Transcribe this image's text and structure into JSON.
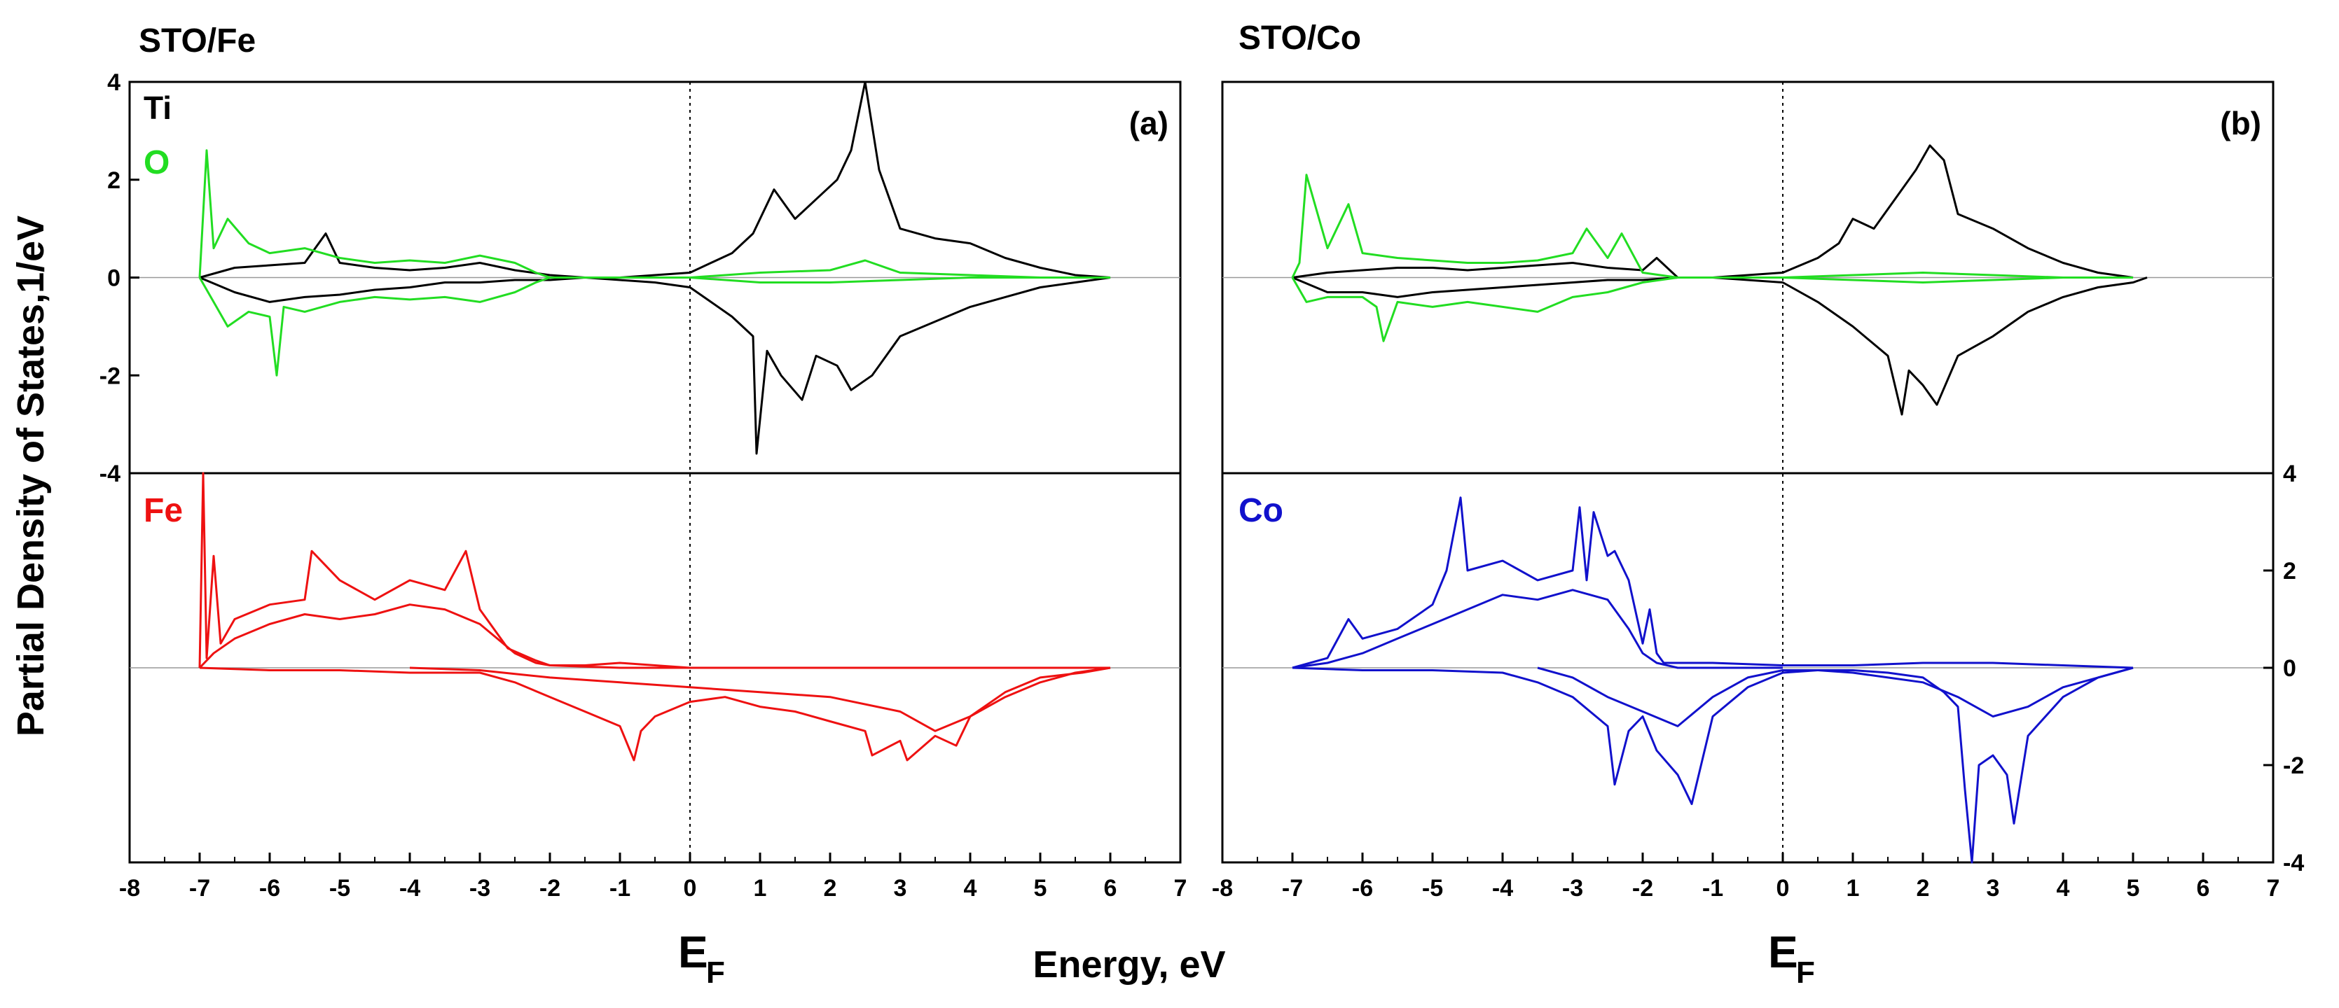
{
  "figure": {
    "ylabel": "Partial Density of States,1/eV",
    "xlabel": "Energy, eV",
    "fermi_label": "E",
    "fermi_sub": "F"
  },
  "colors": {
    "ti": "#000000",
    "o": "#22dd22",
    "fe": "#ee1111",
    "co": "#1111cc",
    "zero": "#999999"
  },
  "chart_data": [
    {
      "type": "line",
      "panel": "a",
      "row": "top",
      "title": "STO/Fe",
      "panel_label": "(a)",
      "xlim": [
        -8,
        7
      ],
      "ylim": [
        -4,
        4
      ],
      "xticks": [
        -8,
        -7,
        -6,
        -5,
        -4,
        -3,
        -2,
        -1,
        0,
        1,
        2,
        3,
        4,
        5,
        6,
        7
      ],
      "yticks": [
        -4,
        -2,
        0,
        2,
        4
      ],
      "legend": [
        "Ti",
        "O"
      ],
      "series": [
        {
          "name": "Ti spin-up",
          "color": "ti",
          "x": [
            -7.0,
            -6.5,
            -6.0,
            -5.5,
            -5.2,
            -5.0,
            -4.5,
            -4.0,
            -3.5,
            -3.0,
            -2.5,
            -2.0,
            -1.5,
            -1.0,
            -0.5,
            0,
            0.3,
            0.6,
            0.9,
            1.2,
            1.5,
            1.8,
            2.1,
            2.3,
            2.5,
            2.7,
            3.0,
            3.5,
            4.0,
            4.5,
            5.0,
            5.5,
            6.0
          ],
          "y": [
            0.0,
            0.2,
            0.25,
            0.3,
            0.9,
            0.3,
            0.2,
            0.15,
            0.2,
            0.3,
            0.15,
            0.05,
            0.0,
            0.0,
            0.05,
            0.1,
            0.3,
            0.5,
            0.9,
            1.8,
            1.2,
            1.6,
            2.0,
            2.6,
            4.0,
            2.2,
            1.0,
            0.8,
            0.7,
            0.4,
            0.2,
            0.05,
            0.0
          ]
        },
        {
          "name": "Ti spin-down",
          "color": "ti",
          "x": [
            -7.0,
            -6.5,
            -6.0,
            -5.5,
            -5.0,
            -4.5,
            -4.0,
            -3.5,
            -3.0,
            -2.5,
            -2.0,
            -1.5,
            -1.0,
            -0.5,
            0,
            0.3,
            0.6,
            0.9,
            0.95,
            1.1,
            1.3,
            1.6,
            1.8,
            2.1,
            2.3,
            2.6,
            3.0,
            3.5,
            4.0,
            4.5,
            5.0,
            5.5,
            6.0
          ],
          "y": [
            0.0,
            -0.3,
            -0.5,
            -0.4,
            -0.35,
            -0.25,
            -0.2,
            -0.1,
            -0.1,
            -0.05,
            -0.05,
            0.0,
            -0.05,
            -0.1,
            -0.2,
            -0.5,
            -0.8,
            -1.2,
            -3.6,
            -1.5,
            -2.0,
            -2.5,
            -1.6,
            -1.8,
            -2.3,
            -2.0,
            -1.2,
            -0.9,
            -0.6,
            -0.4,
            -0.2,
            -0.1,
            0.0
          ]
        },
        {
          "name": "O spin-up",
          "color": "o",
          "x": [
            -7.0,
            -6.9,
            -6.8,
            -6.6,
            -6.3,
            -6.0,
            -5.5,
            -5.0,
            -4.5,
            -4.0,
            -3.5,
            -3.0,
            -2.5,
            -2.2,
            -2.0,
            -1.5,
            -1.0,
            0,
            1.0,
            2.0,
            2.5,
            3.0,
            4.0,
            5.0,
            6.0
          ],
          "y": [
            0.0,
            2.6,
            0.6,
            1.2,
            0.7,
            0.5,
            0.6,
            0.4,
            0.3,
            0.35,
            0.3,
            0.45,
            0.3,
            0.1,
            0.0,
            0.0,
            0.0,
            0.0,
            0.1,
            0.15,
            0.35,
            0.1,
            0.05,
            0.0,
            0.0
          ]
        },
        {
          "name": "O spin-down",
          "color": "o",
          "x": [
            -7.0,
            -6.8,
            -6.6,
            -6.3,
            -6.0,
            -5.9,
            -5.8,
            -5.5,
            -5.0,
            -4.5,
            -4.0,
            -3.5,
            -3.0,
            -2.5,
            -2.2,
            -2.0,
            -1.5,
            -1.0,
            0,
            1.0,
            2.0,
            3.0,
            4.0,
            5.0,
            6.0
          ],
          "y": [
            0.0,
            -0.5,
            -1.0,
            -0.7,
            -0.8,
            -2.0,
            -0.6,
            -0.7,
            -0.5,
            -0.4,
            -0.45,
            -0.4,
            -0.5,
            -0.3,
            -0.1,
            0.0,
            0.0,
            0.0,
            0.0,
            -0.1,
            -0.1,
            -0.05,
            0.0,
            0.0,
            0.0
          ]
        }
      ]
    },
    {
      "type": "line",
      "panel": "a",
      "row": "bottom",
      "xlim": [
        -8,
        7
      ],
      "ylim": [
        -4,
        4
      ],
      "legend": [
        "Fe"
      ],
      "series": [
        {
          "name": "Fe spin-up",
          "color": "fe",
          "x": [
            -7.0,
            -6.95,
            -6.9,
            -6.8,
            -6.7,
            -6.5,
            -6.0,
            -5.5,
            -5.4,
            -5.0,
            -4.5,
            -4.0,
            -3.5,
            -3.2,
            -3.0,
            -2.6,
            -2.2,
            -2.0,
            -1.5,
            -1.0,
            0,
            1.0,
            2.0,
            3.0,
            4.0,
            5.0,
            6.0
          ],
          "y": [
            0.0,
            4.0,
            0.2,
            2.3,
            0.5,
            1.0,
            1.3,
            1.4,
            2.4,
            1.8,
            1.4,
            1.8,
            1.6,
            2.4,
            1.2,
            0.4,
            0.15,
            0.05,
            0.05,
            0.1,
            0.0,
            0.0,
            0.0,
            0.0,
            0.0,
            0.0,
            0.0
          ]
        },
        {
          "name": "Fe spin-up (2)",
          "color": "fe",
          "x": [
            -7.0,
            -6.8,
            -6.5,
            -6.0,
            -5.5,
            -5.0,
            -4.5,
            -4.0,
            -3.5,
            -3.0,
            -2.5,
            -2.2,
            -2.0,
            -1.0,
            0
          ],
          "y": [
            0.0,
            0.3,
            0.6,
            0.9,
            1.1,
            1.0,
            1.1,
            1.3,
            1.2,
            0.9,
            0.3,
            0.1,
            0.05,
            0.0,
            0.0
          ]
        },
        {
          "name": "Fe spin-down",
          "color": "fe",
          "x": [
            -7.0,
            -6.0,
            -5.0,
            -4.0,
            -3.0,
            -2.5,
            -2.0,
            -1.5,
            -1.0,
            -0.8,
            -0.7,
            -0.5,
            0,
            0.5,
            1.0,
            1.5,
            2.0,
            2.5,
            2.6,
            3.0,
            3.1,
            3.5,
            3.8,
            4.0,
            4.5,
            5.0,
            5.5,
            6.0
          ],
          "y": [
            0.0,
            -0.05,
            -0.05,
            -0.1,
            -0.1,
            -0.3,
            -0.6,
            -0.9,
            -1.2,
            -1.9,
            -1.3,
            -1.0,
            -0.7,
            -0.6,
            -0.8,
            -0.9,
            -1.1,
            -1.3,
            -1.8,
            -1.5,
            -1.9,
            -1.4,
            -1.6,
            -1.0,
            -0.6,
            -0.3,
            -0.1,
            0.0
          ]
        },
        {
          "name": "Fe spin-down (2)",
          "color": "fe",
          "x": [
            -4.0,
            -3.0,
            -2.0,
            -1.0,
            0,
            1.0,
            2.0,
            3.0,
            3.5,
            4.0,
            4.5,
            5.0,
            5.6,
            6.0
          ],
          "y": [
            0.0,
            -0.05,
            -0.2,
            -0.3,
            -0.4,
            -0.5,
            -0.6,
            -0.9,
            -1.3,
            -1.0,
            -0.5,
            -0.2,
            -0.1,
            0.0
          ]
        }
      ]
    },
    {
      "type": "line",
      "panel": "b",
      "row": "top",
      "title": "STO/Co",
      "panel_label": "(b)",
      "xlim": [
        -8,
        7
      ],
      "ylim": [
        -4,
        4
      ],
      "legend": [],
      "series": [
        {
          "name": "Ti spin-up",
          "color": "ti",
          "x": [
            -7.0,
            -6.5,
            -6.0,
            -5.5,
            -5.0,
            -4.5,
            -4.0,
            -3.5,
            -3.0,
            -2.5,
            -2.0,
            -1.8,
            -1.5,
            -1.0,
            -0.5,
            0,
            0.5,
            0.8,
            1.0,
            1.3,
            1.6,
            1.9,
            2.1,
            2.3,
            2.5,
            3.0,
            3.5,
            4.0,
            4.5,
            5.0
          ],
          "y": [
            0.0,
            0.1,
            0.15,
            0.2,
            0.2,
            0.15,
            0.2,
            0.25,
            0.3,
            0.2,
            0.15,
            0.4,
            0.0,
            0.0,
            0.05,
            0.1,
            0.4,
            0.7,
            1.2,
            1.0,
            1.6,
            2.2,
            2.7,
            2.4,
            1.3,
            1.0,
            0.6,
            0.3,
            0.1,
            0.0
          ]
        },
        {
          "name": "Ti spin-down",
          "color": "ti",
          "x": [
            -7.0,
            -6.5,
            -6.0,
            -5.5,
            -5.0,
            -4.5,
            -4.0,
            -3.5,
            -3.0,
            -2.5,
            -2.0,
            -1.5,
            -1.0,
            -0.5,
            0,
            0.5,
            1.0,
            1.5,
            1.7,
            1.8,
            2.0,
            2.2,
            2.5,
            3.0,
            3.5,
            4.0,
            4.5,
            5.0,
            5.2
          ],
          "y": [
            0.0,
            -0.3,
            -0.3,
            -0.4,
            -0.3,
            -0.25,
            -0.2,
            -0.15,
            -0.1,
            -0.05,
            -0.05,
            0.0,
            0.0,
            -0.05,
            -0.1,
            -0.5,
            -1.0,
            -1.6,
            -2.8,
            -1.9,
            -2.2,
            -2.6,
            -1.6,
            -1.2,
            -0.7,
            -0.4,
            -0.2,
            -0.1,
            0.0
          ]
        },
        {
          "name": "O spin-up",
          "color": "o",
          "x": [
            -7.0,
            -6.9,
            -6.8,
            -6.5,
            -6.2,
            -6.0,
            -5.5,
            -5.0,
            -4.5,
            -4.0,
            -3.5,
            -3.0,
            -2.8,
            -2.5,
            -2.3,
            -2.0,
            -1.5,
            0,
            1.0,
            2.0,
            3.0,
            4.0,
            5.0
          ],
          "y": [
            0.0,
            0.3,
            2.1,
            0.6,
            1.5,
            0.5,
            0.4,
            0.35,
            0.3,
            0.3,
            0.35,
            0.5,
            1.0,
            0.4,
            0.9,
            0.1,
            0.0,
            0.0,
            0.05,
            0.1,
            0.05,
            0.0,
            0.0
          ]
        },
        {
          "name": "O spin-down",
          "color": "o",
          "x": [
            -7.0,
            -6.8,
            -6.5,
            -6.0,
            -5.8,
            -5.7,
            -5.5,
            -5.0,
            -4.5,
            -4.0,
            -3.5,
            -3.0,
            -2.5,
            -2.0,
            -1.5,
            0,
            1.0,
            2.0,
            3.0,
            4.0,
            5.0
          ],
          "y": [
            0.0,
            -0.5,
            -0.4,
            -0.4,
            -0.6,
            -1.3,
            -0.5,
            -0.6,
            -0.5,
            -0.6,
            -0.7,
            -0.4,
            -0.3,
            -0.1,
            0.0,
            0.0,
            -0.05,
            -0.1,
            -0.05,
            0.0,
            0.0
          ]
        }
      ]
    },
    {
      "type": "line",
      "panel": "b",
      "row": "bottom",
      "xlim": [
        -8,
        7
      ],
      "ylim": [
        -4,
        4
      ],
      "yticks": [
        -4,
        -2,
        0,
        2,
        4
      ],
      "legend": [
        "Co"
      ],
      "series": [
        {
          "name": "Co spin-up",
          "color": "co",
          "x": [
            -7.0,
            -6.5,
            -6.2,
            -6.0,
            -5.5,
            -5.0,
            -4.8,
            -4.6,
            -4.5,
            -4.0,
            -3.5,
            -3.0,
            -2.9,
            -2.8,
            -2.7,
            -2.5,
            -2.4,
            -2.2,
            -2.0,
            -1.9,
            -1.8,
            -1.7,
            -1.5,
            -1.0,
            0,
            1.0,
            2.0,
            3.0,
            4.0,
            5.0
          ],
          "y": [
            0.0,
            0.2,
            1.0,
            0.6,
            0.8,
            1.3,
            2.0,
            3.5,
            2.0,
            2.2,
            1.8,
            2.0,
            3.3,
            1.8,
            3.2,
            2.3,
            2.4,
            1.8,
            0.5,
            1.2,
            0.3,
            0.1,
            0.1,
            0.1,
            0.05,
            0.05,
            0.1,
            0.1,
            0.05,
            0.0
          ]
        },
        {
          "name": "Co spin-up (2)",
          "color": "co",
          "x": [
            -7.0,
            -6.5,
            -6.0,
            -5.5,
            -5.0,
            -4.5,
            -4.0,
            -3.5,
            -3.0,
            -2.5,
            -2.2,
            -2.0,
            -1.8,
            -1.5,
            0
          ],
          "y": [
            0.0,
            0.1,
            0.3,
            0.6,
            0.9,
            1.2,
            1.5,
            1.4,
            1.6,
            1.4,
            0.8,
            0.3,
            0.1,
            0.0,
            0.0
          ]
        },
        {
          "name": "Co spin-down",
          "color": "co",
          "x": [
            -7.0,
            -6.0,
            -5.0,
            -4.0,
            -3.5,
            -3.0,
            -2.5,
            -2.4,
            -2.2,
            -2.0,
            -1.8,
            -1.5,
            -1.3,
            -1.0,
            -0.5,
            0,
            0.5,
            1.0,
            1.5,
            2.0,
            2.3,
            2.5,
            2.6,
            2.7,
            2.8,
            3.0,
            3.2,
            3.3,
            3.5,
            4.0,
            4.5,
            5.0
          ],
          "y": [
            0.0,
            -0.05,
            -0.05,
            -0.1,
            -0.3,
            -0.6,
            -1.2,
            -2.4,
            -1.3,
            -1.0,
            -1.7,
            -2.2,
            -2.8,
            -1.0,
            -0.4,
            -0.1,
            -0.05,
            -0.05,
            -0.1,
            -0.2,
            -0.5,
            -0.8,
            -2.5,
            -4.0,
            -2.0,
            -1.8,
            -2.2,
            -3.2,
            -1.4,
            -0.6,
            -0.2,
            0.0
          ]
        },
        {
          "name": "Co spin-down (2)",
          "color": "co",
          "x": [
            -3.5,
            -3.0,
            -2.5,
            -2.0,
            -1.5,
            -1.0,
            -0.5,
            0,
            0.5,
            1.0,
            1.5,
            2.0,
            2.5,
            3.0,
            3.5,
            4.0,
            4.5,
            5.0
          ],
          "y": [
            0.0,
            -0.2,
            -0.6,
            -0.9,
            -1.2,
            -0.6,
            -0.2,
            -0.05,
            -0.05,
            -0.1,
            -0.2,
            -0.3,
            -0.6,
            -1.0,
            -0.8,
            -0.4,
            -0.2,
            0.0
          ]
        }
      ]
    }
  ]
}
